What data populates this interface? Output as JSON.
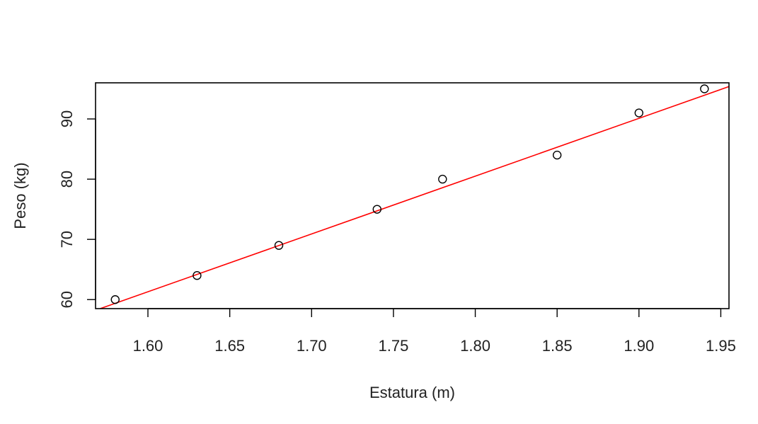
{
  "chart_data": {
    "type": "scatter",
    "title": "",
    "xlabel": "Estatura (m)",
    "ylabel": "Peso (kg)",
    "xlim": [
      1.568,
      1.955
    ],
    "ylim": [
      58.5,
      96.0
    ],
    "x_ticks": [
      1.6,
      1.65,
      1.7,
      1.75,
      1.8,
      1.85,
      1.9,
      1.95
    ],
    "x_tick_labels": [
      "1.60",
      "1.65",
      "1.70",
      "1.75",
      "1.80",
      "1.85",
      "1.90",
      "1.95"
    ],
    "y_ticks": [
      60,
      70,
      80,
      90
    ],
    "y_tick_labels": [
      "60",
      "70",
      "80",
      "90"
    ],
    "points": [
      {
        "x": 1.58,
        "y": 60
      },
      {
        "x": 1.63,
        "y": 64
      },
      {
        "x": 1.68,
        "y": 69
      },
      {
        "x": 1.74,
        "y": 75
      },
      {
        "x": 1.78,
        "y": 80
      },
      {
        "x": 1.85,
        "y": 84
      },
      {
        "x": 1.9,
        "y": 91
      },
      {
        "x": 1.94,
        "y": 95
      }
    ],
    "fit_line": {
      "slope": 96.0,
      "intercept": -92.3
    },
    "grid": false,
    "legend": "none",
    "colors": {
      "points": "#000000",
      "fit_line": "#ff0000",
      "axes": "#000000"
    }
  }
}
